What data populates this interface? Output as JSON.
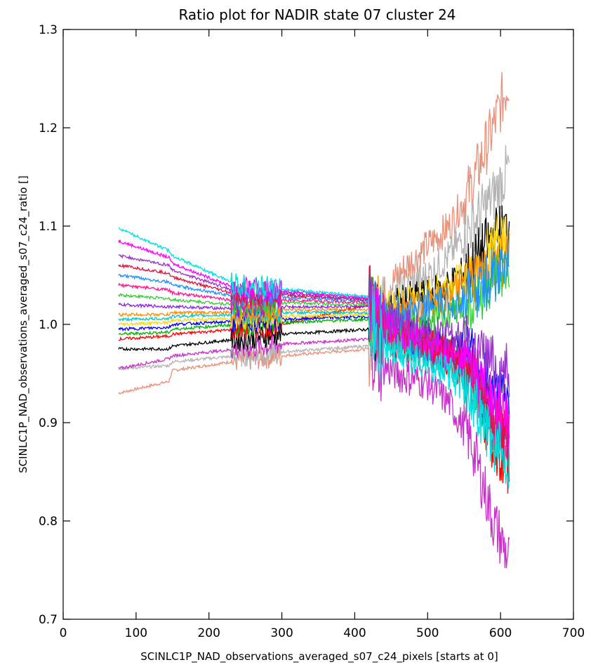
{
  "chart_data": {
    "type": "line",
    "title": "Ratio plot for NADIR state 07 cluster 24",
    "xlabel": "SCINLC1P_NAD_observations_averaged_s07_c24_pixels [starts at 0]",
    "ylabel": "SCINLC1P_NAD_observations_averaged_s07_c24_ratio []",
    "xlim": [
      0,
      700
    ],
    "ylim": [
      0.7,
      1.3
    ],
    "x_ticks": [
      "0",
      "100",
      "200",
      "300",
      "400",
      "500",
      "600",
      "700"
    ],
    "y_ticks": [
      "0.7",
      "0.8",
      "0.9",
      "1.0",
      "1.1",
      "1.2",
      "1.3"
    ],
    "grid": false,
    "legend": "none",
    "x_range_of_data": [
      76,
      612
    ],
    "series": [
      {
        "color": "#e8907a",
        "x": [
          76,
          145,
          150,
          240,
          300,
          420,
          430,
          460,
          500,
          530,
          560,
          590,
          612
        ],
        "y": [
          0.93,
          0.942,
          0.953,
          0.963,
          0.968,
          0.975,
          1.02,
          1.05,
          1.08,
          1.1,
          1.14,
          1.2,
          1.25
        ]
      },
      {
        "color": "#b4b4b4",
        "x": [
          76,
          145,
          150,
          240,
          300,
          420,
          430,
          460,
          500,
          530,
          560,
          590,
          612
        ],
        "y": [
          0.955,
          0.958,
          0.962,
          0.968,
          0.972,
          0.978,
          1.01,
          1.03,
          1.05,
          1.07,
          1.1,
          1.13,
          1.16
        ]
      },
      {
        "color": "#c832c8",
        "x": [
          76,
          145,
          150,
          240,
          300,
          420,
          430,
          460,
          500,
          530,
          560,
          590,
          612
        ],
        "y": [
          0.955,
          0.965,
          0.968,
          0.975,
          0.98,
          0.985,
          0.96,
          0.95,
          0.94,
          0.92,
          0.88,
          0.8,
          0.76
        ]
      },
      {
        "color": "#000000",
        "x": [
          76,
          145,
          150,
          240,
          300,
          420,
          430,
          460,
          500,
          530,
          560,
          590,
          612
        ],
        "y": [
          0.975,
          0.975,
          0.978,
          0.985,
          0.99,
          0.995,
          1.0,
          1.02,
          1.03,
          1.04,
          1.06,
          1.09,
          1.1
        ]
      },
      {
        "color": "#ff0000",
        "x": [
          76,
          145,
          150,
          240,
          300,
          420,
          430,
          460,
          500,
          530,
          560,
          590,
          612
        ],
        "y": [
          0.985,
          0.988,
          0.99,
          0.995,
          1.0,
          1.02,
          1.0,
          0.98,
          0.97,
          0.96,
          0.94,
          0.88,
          0.85
        ]
      },
      {
        "color": "#00b400",
        "x": [
          76,
          145,
          150,
          240,
          300,
          420,
          430,
          460,
          500,
          530,
          560,
          590,
          612
        ],
        "y": [
          0.99,
          0.992,
          0.995,
          1.0,
          1.002,
          1.005,
          1.0,
          0.99,
          0.98,
          0.97,
          0.95,
          0.9,
          0.88
        ]
      },
      {
        "color": "#0000ff",
        "x": [
          76,
          145,
          150,
          240,
          300,
          420,
          430,
          460,
          500,
          530,
          560,
          590,
          612
        ],
        "y": [
          0.995,
          0.997,
          1.0,
          1.003,
          1.005,
          1.008,
          1.0,
          1.0,
          0.99,
          0.98,
          0.97,
          0.93,
          0.92
        ]
      },
      {
        "color": "#ffd700",
        "x": [
          76,
          145,
          150,
          240,
          300,
          420,
          430,
          460,
          500,
          530,
          560,
          590,
          612
        ],
        "y": [
          1.0,
          1.002,
          1.004,
          1.006,
          1.008,
          1.01,
          1.01,
          1.02,
          1.03,
          1.04,
          1.05,
          1.08,
          1.09
        ]
      },
      {
        "color": "#00c8c8",
        "x": [
          76,
          145,
          150,
          240,
          300,
          420,
          430,
          460,
          500,
          530,
          560,
          590,
          612
        ],
        "y": [
          1.005,
          1.006,
          1.008,
          1.01,
          1.012,
          1.012,
          1.0,
          0.98,
          0.97,
          0.96,
          0.94,
          0.89,
          0.87
        ]
      },
      {
        "color": "#ff8c00",
        "x": [
          76,
          145,
          150,
          240,
          300,
          420,
          430,
          460,
          500,
          530,
          560,
          590,
          612
        ],
        "y": [
          1.01,
          1.01,
          1.012,
          1.012,
          1.015,
          1.015,
          1.01,
          1.01,
          1.02,
          1.03,
          1.04,
          1.06,
          1.07
        ]
      },
      {
        "color": "#8c28dc",
        "x": [
          76,
          145,
          150,
          240,
          300,
          420,
          430,
          460,
          500,
          530,
          560,
          590,
          612
        ],
        "y": [
          1.02,
          1.018,
          1.018,
          1.016,
          1.018,
          1.018,
          1.0,
          0.99,
          0.98,
          0.97,
          0.96,
          0.91,
          0.89
        ]
      },
      {
        "color": "#32cd32",
        "x": [
          76,
          145,
          150,
          240,
          300,
          420,
          430,
          460,
          500,
          530,
          560,
          590,
          612
        ],
        "y": [
          1.03,
          1.026,
          1.025,
          1.02,
          1.022,
          1.02,
          1.01,
          1.0,
          1.0,
          1.01,
          1.02,
          1.04,
          1.05
        ]
      },
      {
        "color": "#ff1493",
        "x": [
          76,
          145,
          150,
          240,
          300,
          420,
          430,
          460,
          500,
          530,
          560,
          590,
          612
        ],
        "y": [
          1.04,
          1.035,
          1.032,
          1.024,
          1.025,
          1.022,
          1.0,
          0.99,
          0.98,
          0.97,
          0.95,
          0.9,
          0.88
        ]
      },
      {
        "color": "#1e90ff",
        "x": [
          76,
          145,
          150,
          240,
          300,
          420,
          430,
          460,
          500,
          530,
          560,
          590,
          612
        ],
        "y": [
          1.05,
          1.043,
          1.04,
          1.028,
          1.028,
          1.024,
          1.01,
          1.01,
          1.02,
          1.02,
          1.03,
          1.05,
          1.06
        ]
      },
      {
        "color": "#dc143c",
        "x": [
          76,
          145,
          150,
          240,
          300,
          420,
          430,
          460,
          500,
          530,
          560,
          590,
          612
        ],
        "y": [
          1.06,
          1.052,
          1.048,
          1.03,
          1.03,
          1.025,
          1.0,
          0.99,
          0.98,
          0.97,
          0.95,
          0.9,
          0.88
        ]
      },
      {
        "color": "#9932cc",
        "x": [
          76,
          145,
          150,
          240,
          300,
          420,
          430,
          460,
          500,
          530,
          560,
          590,
          612
        ],
        "y": [
          1.07,
          1.06,
          1.055,
          1.033,
          1.032,
          1.026,
          1.01,
          1.0,
          0.99,
          0.99,
          0.98,
          0.96,
          0.95
        ]
      },
      {
        "color": "#ff00ff",
        "x": [
          76,
          145,
          150,
          240,
          300,
          420,
          430,
          460,
          500,
          530,
          560,
          590,
          612
        ],
        "y": [
          1.085,
          1.068,
          1.062,
          1.036,
          1.034,
          1.027,
          1.0,
          0.99,
          0.98,
          0.97,
          0.96,
          0.92,
          0.9
        ]
      },
      {
        "color": "#00e0e0",
        "x": [
          76,
          145,
          150,
          240,
          300,
          420,
          430,
          460,
          500,
          530,
          560,
          590,
          612
        ],
        "y": [
          1.098,
          1.075,
          1.07,
          1.04,
          1.036,
          1.028,
          0.98,
          0.97,
          0.96,
          0.95,
          0.93,
          0.88,
          0.86
        ]
      }
    ]
  }
}
